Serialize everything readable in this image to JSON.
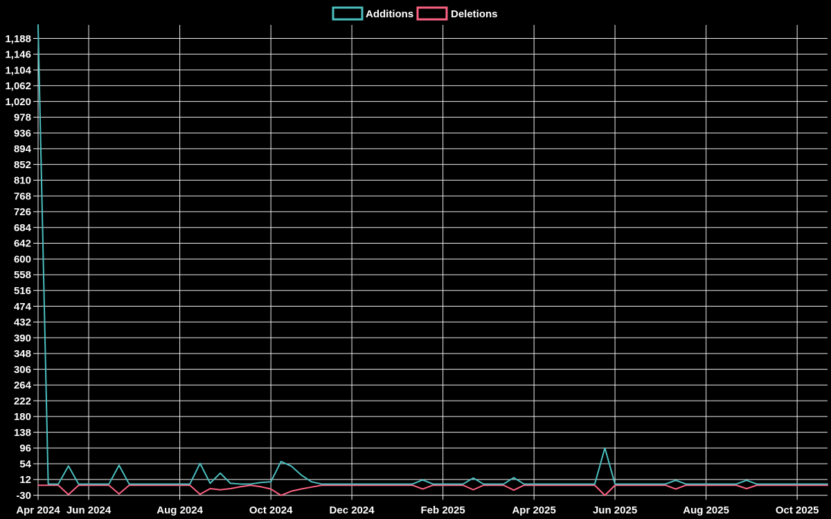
{
  "chart_data": {
    "type": "line",
    "title": "",
    "xlabel": "",
    "ylabel": "",
    "background_color": "#000000",
    "grid": true,
    "grid_color": "#f0f0f0",
    "text_color": "#ffffff",
    "legend_position": "top",
    "points_count": 79,
    "x_unit": "week-index",
    "x_tick_labels": [
      "Apr 2024",
      "Jun 2024",
      "Aug 2024",
      "Oct 2024",
      "Dec 2024",
      "Feb 2025",
      "Apr 2025",
      "Jun 2025",
      "Aug 2025",
      "Oct 2025"
    ],
    "x_tick_indices": [
      0,
      5,
      14,
      23,
      31,
      40,
      49,
      57,
      66,
      75
    ],
    "y_axis": {
      "min": -30,
      "max": 1224,
      "tick_step": 42,
      "first_tick": -30,
      "last_tick": 1188
    },
    "series": [
      {
        "name": "Additions",
        "color": "#4bc0c0",
        "values": [
          1224,
          0,
          0,
          48,
          0,
          0,
          0,
          0,
          50,
          0,
          0,
          0,
          0,
          0,
          0,
          0,
          55,
          2,
          29,
          2,
          0,
          0,
          4,
          6,
          60,
          48,
          24,
          6,
          0,
          0,
          0,
          0,
          0,
          0,
          0,
          0,
          0,
          0,
          11,
          0,
          0,
          0,
          0,
          16,
          0,
          0,
          0,
          17,
          0,
          0,
          0,
          0,
          0,
          0,
          0,
          0,
          96,
          0,
          0,
          0,
          0,
          0,
          0,
          10,
          0,
          0,
          0,
          0,
          0,
          0,
          10,
          0,
          0,
          0,
          0,
          0,
          0,
          0,
          0
        ]
      },
      {
        "name": "Deletions",
        "color": "#ff6384",
        "values": [
          0,
          0,
          0,
          -25,
          0,
          0,
          0,
          0,
          -23,
          0,
          0,
          0,
          0,
          0,
          0,
          0,
          -24,
          -9,
          -12,
          -9,
          -4,
          0,
          -4,
          -10,
          -27,
          -16,
          -10,
          -5,
          0,
          0,
          0,
          0,
          0,
          0,
          0,
          0,
          0,
          0,
          -10,
          0,
          0,
          0,
          0,
          -12,
          0,
          0,
          0,
          -13,
          0,
          0,
          0,
          0,
          0,
          0,
          0,
          0,
          -27,
          0,
          0,
          0,
          0,
          0,
          0,
          -10,
          0,
          0,
          0,
          0,
          0,
          0,
          -9,
          0,
          0,
          0,
          0,
          0,
          0,
          0,
          0
        ]
      }
    ]
  },
  "legend": {
    "items": [
      {
        "label": "Additions"
      },
      {
        "label": "Deletions"
      }
    ]
  }
}
